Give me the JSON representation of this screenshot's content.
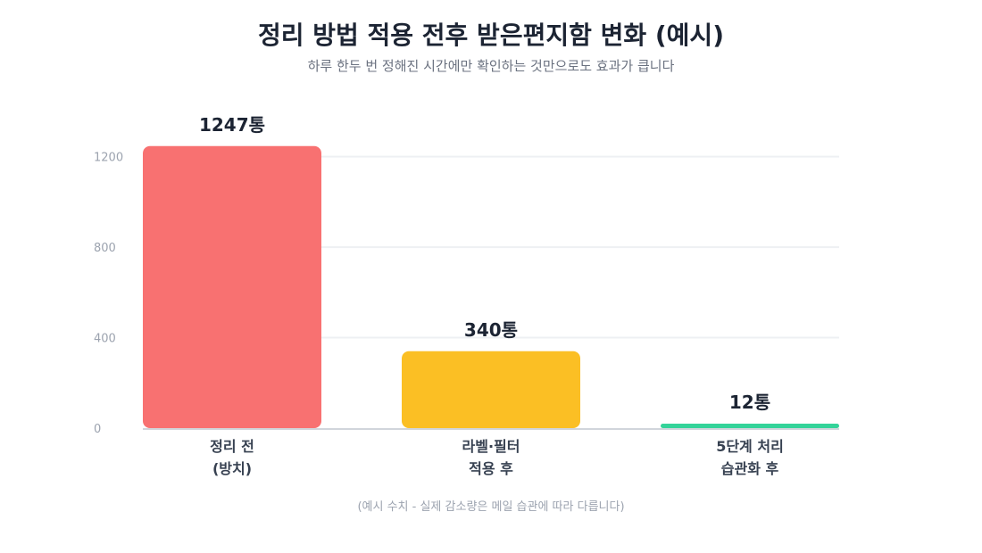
{
  "chart_data": {
    "type": "bar",
    "title": "정리 방법 적용 전후 받은편지함 변화 (예시)",
    "subtitle": "하루 한두 번 정해진 시간에만 확인하는 것만으로도 효과가 큽니다",
    "categories": [
      [
        "정리 전",
        "(방치)"
      ],
      [
        "라벨·필터",
        "적용 후"
      ],
      [
        "5단계 처리",
        "습관화 후"
      ]
    ],
    "values": [
      1247,
      340,
      12
    ],
    "value_labels": [
      "1247통",
      "340통",
      "12통"
    ],
    "bar_colors": [
      "#f87171",
      "#fbbf24",
      "#34d399"
    ],
    "ylim": [
      0,
      1250
    ],
    "yticks": [
      0,
      400,
      800,
      1200
    ],
    "grid": true,
    "xlabel": "",
    "ylabel": "",
    "footnote": "(예시 수치 - 실제 감소량은 메일 습관에 따라 다릅니다)"
  }
}
